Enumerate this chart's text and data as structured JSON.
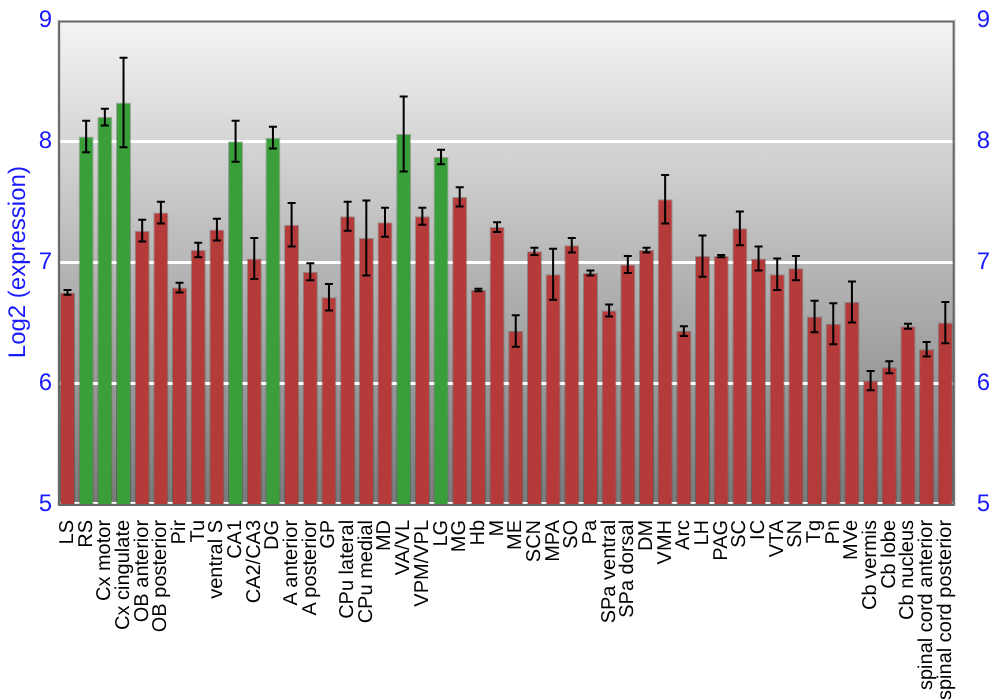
{
  "chart_data": {
    "type": "bar",
    "ylabel": "Log2 (expression)",
    "categories": [
      "LS",
      "RS",
      "Cx motor",
      "Cx cingulate",
      "OB anterior",
      "OB posterior",
      "Pir",
      "Tu",
      "ventral S",
      "CA1",
      "CA2/CA3",
      "DG",
      "A anterior",
      "A posterior",
      "GP",
      "CPu lateral",
      "CPu medial",
      "MD",
      "VA/VL",
      "VPM/VPL",
      "LG",
      "MG",
      "Hb",
      "M",
      "ME",
      "SCN",
      "MPA",
      "SO",
      "Pa",
      "SPa ventral",
      "SPa dorsal",
      "DM",
      "VMH",
      "Arc",
      "LH",
      "PAG",
      "SC",
      "IC",
      "VTA",
      "SN",
      "Tg",
      "Pn",
      "MVe",
      "Cb vermis",
      "Cb lobe",
      "Cb nucleus",
      "spinal cord anterior",
      "spinal cord posterior"
    ],
    "values": [
      6.75,
      8.04,
      8.2,
      8.32,
      7.26,
      7.41,
      6.79,
      7.1,
      7.27,
      8.0,
      7.03,
      8.03,
      7.31,
      6.92,
      6.71,
      7.38,
      7.2,
      7.33,
      8.06,
      7.38,
      7.87,
      7.54,
      6.77,
      7.29,
      6.43,
      7.09,
      6.9,
      7.14,
      6.91,
      6.6,
      6.98,
      7.1,
      7.52,
      6.43,
      7.05,
      7.05,
      7.28,
      7.03,
      6.9,
      6.95,
      6.55,
      6.49,
      6.67,
      6.02,
      6.13,
      6.47,
      6.28,
      6.5
    ],
    "errors": [
      0.02,
      0.13,
      0.07,
      0.37,
      0.09,
      0.09,
      0.04,
      0.06,
      0.09,
      0.17,
      0.17,
      0.09,
      0.18,
      0.07,
      0.11,
      0.12,
      0.31,
      0.12,
      0.31,
      0.07,
      0.06,
      0.08,
      0.01,
      0.04,
      0.13,
      0.03,
      0.21,
      0.06,
      0.02,
      0.05,
      0.07,
      0.02,
      0.2,
      0.04,
      0.17,
      0.01,
      0.14,
      0.1,
      0.13,
      0.1,
      0.13,
      0.17,
      0.17,
      0.08,
      0.05,
      0.02,
      0.06,
      0.17
    ],
    "colors": [
      "#b53a3a",
      "#3a9e3a",
      "#3a9e3a",
      "#3a9e3a",
      "#b53a3a",
      "#b53a3a",
      "#b53a3a",
      "#b53a3a",
      "#b53a3a",
      "#3a9e3a",
      "#b53a3a",
      "#3a9e3a",
      "#b53a3a",
      "#b53a3a",
      "#b53a3a",
      "#b53a3a",
      "#b53a3a",
      "#b53a3a",
      "#3a9e3a",
      "#b53a3a",
      "#3a9e3a",
      "#b53a3a",
      "#b53a3a",
      "#b53a3a",
      "#b53a3a",
      "#b53a3a",
      "#b53a3a",
      "#b53a3a",
      "#b53a3a",
      "#b53a3a",
      "#b53a3a",
      "#b53a3a",
      "#b53a3a",
      "#b53a3a",
      "#b53a3a",
      "#b53a3a",
      "#b53a3a",
      "#b53a3a",
      "#b53a3a",
      "#b53a3a",
      "#b53a3a",
      "#b53a3a",
      "#b53a3a",
      "#b53a3a",
      "#b53a3a",
      "#b53a3a",
      "#b53a3a",
      "#b53a3a"
    ],
    "ylim": [
      5,
      9
    ],
    "yticks": [
      5,
      6,
      7,
      8,
      9
    ],
    "y2lim": [
      5,
      9
    ],
    "y2ticks": [
      5,
      6,
      7,
      8,
      9
    ],
    "grid": "y",
    "legend": false
  }
}
